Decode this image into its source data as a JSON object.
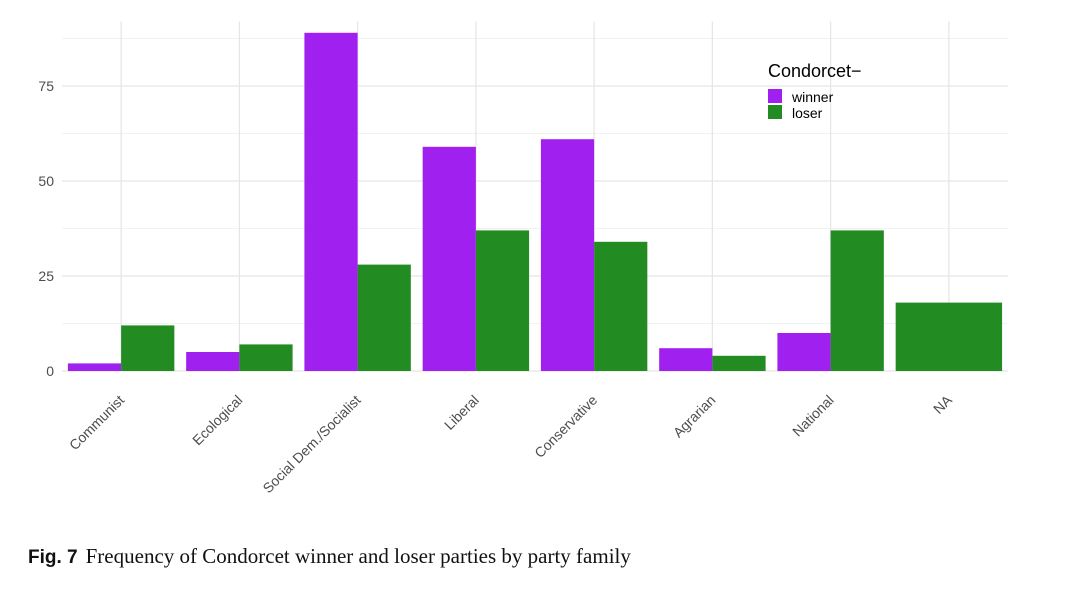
{
  "chart_data": {
    "type": "bar",
    "title": "",
    "xlabel": "",
    "ylabel": "",
    "categories": [
      "Communist",
      "Ecological",
      "Social Dem./Socialist",
      "Liberal",
      "Conservative",
      "Agrarian",
      "National",
      "NA"
    ],
    "series": [
      {
        "name": "winner",
        "color": "#A020F0",
        "values": [
          2,
          5,
          89,
          59,
          61,
          6,
          10,
          null
        ]
      },
      {
        "name": "loser",
        "color": "#228B22",
        "values": [
          12,
          7,
          28,
          37,
          34,
          4,
          37,
          18
        ]
      }
    ],
    "ylim": [
      0,
      92
    ],
    "yticks": [
      0,
      25,
      50,
      75
    ],
    "grid": true,
    "legend": {
      "title": "Condorcet−",
      "placement": "top-right"
    }
  },
  "caption": {
    "label": "Fig. 7",
    "text": "Frequency of Condorcet winner and loser parties by party family"
  }
}
